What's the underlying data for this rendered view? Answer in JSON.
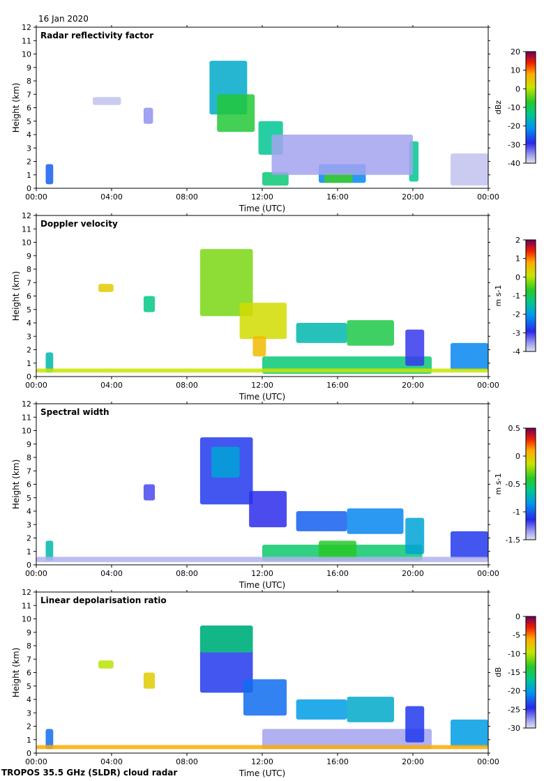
{
  "date_label": "16 Jan 2020",
  "footer": "TROPOS 35.5 GHz (SLDR) cloud radar",
  "chart_data": [
    {
      "type": "heatmap",
      "title": "Radar reflectivity factor",
      "xlabel": "Time (UTC)",
      "ylabel": "Height (km)",
      "xticks": [
        "00:00",
        "04:00",
        "08:00",
        "12:00",
        "16:00",
        "20:00",
        "00:00"
      ],
      "xlim": [
        0,
        24
      ],
      "ylim": [
        0,
        12
      ],
      "yticks": [
        "0",
        "1",
        "2",
        "3",
        "4",
        "5",
        "6",
        "7",
        "8",
        "9",
        "10",
        "11",
        "12"
      ],
      "colorbar": {
        "label": "dBz",
        "range": [
          -40,
          20
        ],
        "ticks": [
          "20",
          "10",
          "0",
          "-10",
          "-20",
          "-30",
          "-40"
        ]
      },
      "echoes": [
        {
          "t": [
            9.2,
            11.2
          ],
          "h": [
            5.5,
            9.5
          ],
          "v": -18
        },
        {
          "t": [
            9.6,
            11.6
          ],
          "h": [
            4.2,
            7.0
          ],
          "v": -8
        },
        {
          "t": [
            11.8,
            13.1
          ],
          "h": [
            2.5,
            5.0
          ],
          "v": -14
        },
        {
          "t": [
            12.0,
            13.4
          ],
          "h": [
            0.2,
            1.2
          ],
          "v": -12
        },
        {
          "t": [
            15.0,
            17.5
          ],
          "h": [
            0.4,
            1.8
          ],
          "v": -22
        },
        {
          "t": [
            15.3,
            16.8
          ],
          "h": [
            0.4,
            1.2
          ],
          "v": -6
        },
        {
          "t": [
            19.8,
            20.3
          ],
          "h": [
            0.5,
            3.5
          ],
          "v": -14
        },
        {
          "t": [
            0.5,
            0.9
          ],
          "h": [
            0.3,
            1.8
          ],
          "v": -25
        },
        {
          "t": [
            5.7,
            6.2
          ],
          "h": [
            4.8,
            6.0
          ],
          "v": -35
        },
        {
          "t": [
            3.0,
            4.5
          ],
          "h": [
            6.2,
            6.8
          ],
          "v": -38
        },
        {
          "t": [
            22.0,
            24.0
          ],
          "h": [
            0.2,
            2.6
          ],
          "v": -38
        },
        {
          "t": [
            12.5,
            20.0
          ],
          "h": [
            1.0,
            4.0
          ],
          "v": -36
        }
      ]
    },
    {
      "type": "heatmap",
      "title": "Doppler velocity",
      "xlabel": "Time (UTC)",
      "ylabel": "Height (km)",
      "xticks": [
        "00:00",
        "04:00",
        "08:00",
        "12:00",
        "16:00",
        "20:00",
        "00:00"
      ],
      "xlim": [
        0,
        24
      ],
      "ylim": [
        0,
        12
      ],
      "yticks": [
        "0",
        "1",
        "2",
        "3",
        "4",
        "5",
        "6",
        "7",
        "8",
        "9",
        "10",
        "11",
        "12"
      ],
      "colorbar": {
        "label": "m s-1",
        "range": [
          -4,
          2
        ],
        "ticks": [
          "2",
          "1",
          "0",
          "-1",
          "-2",
          "-3",
          "-4"
        ]
      },
      "echoes": [
        {
          "t": [
            8.7,
            11.5
          ],
          "h": [
            4.5,
            9.5
          ],
          "v": -0.3
        },
        {
          "t": [
            10.8,
            13.3
          ],
          "h": [
            2.8,
            5.5
          ],
          "v": 0.2
        },
        {
          "t": [
            11.5,
            12.2
          ],
          "h": [
            1.5,
            3.0
          ],
          "v": 0.6
        },
        {
          "t": [
            12.0,
            21.0
          ],
          "h": [
            0.2,
            1.5
          ],
          "v": -1.2
        },
        {
          "t": [
            13.8,
            16.5
          ],
          "h": [
            2.5,
            4.0
          ],
          "v": -1.6
        },
        {
          "t": [
            16.5,
            19.0
          ],
          "h": [
            2.3,
            4.2
          ],
          "v": -0.9
        },
        {
          "t": [
            19.6,
            20.6
          ],
          "h": [
            0.8,
            3.5
          ],
          "v": -3.0
        },
        {
          "t": [
            22.0,
            24.0
          ],
          "h": [
            0.5,
            2.5
          ],
          "v": -2.2
        },
        {
          "t": [
            0.5,
            0.9
          ],
          "h": [
            0.3,
            1.8
          ],
          "v": -1.6
        },
        {
          "t": [
            5.7,
            6.3
          ],
          "h": [
            4.8,
            6.0
          ],
          "v": -1.3
        },
        {
          "t": [
            3.3,
            4.1
          ],
          "h": [
            6.3,
            6.9
          ],
          "v": 0.4
        },
        {
          "t": [
            0.0,
            24.0
          ],
          "h": [
            0.3,
            0.6
          ],
          "v": 0.1
        }
      ]
    },
    {
      "type": "heatmap",
      "title": "Spectral width",
      "xlabel": "Time (UTC)",
      "ylabel": "Height (km)",
      "xticks": [
        "00:00",
        "04:00",
        "08:00",
        "12:00",
        "16:00",
        "20:00",
        "00:00"
      ],
      "xlim": [
        0,
        24
      ],
      "ylim": [
        0,
        12
      ],
      "yticks": [
        "0",
        "1",
        "2",
        "3",
        "4",
        "5",
        "6",
        "7",
        "8",
        "9",
        "10",
        "11",
        "12"
      ],
      "colorbar": {
        "label": "m s-1",
        "range": [
          -1.5,
          0.5
        ],
        "ticks": [
          "0.5",
          "0",
          "-0.5",
          "-1",
          "-1.5"
        ]
      },
      "echoes": [
        {
          "t": [
            8.7,
            11.5
          ],
          "h": [
            4.5,
            9.5
          ],
          "v": -1.1
        },
        {
          "t": [
            9.3,
            10.8
          ],
          "h": [
            6.5,
            8.8
          ],
          "v": -0.8
        },
        {
          "t": [
            11.3,
            13.3
          ],
          "h": [
            2.8,
            5.5
          ],
          "v": -1.15
        },
        {
          "t": [
            12.0,
            20.5
          ],
          "h": [
            0.3,
            1.5
          ],
          "v": -0.55
        },
        {
          "t": [
            15.0,
            17.0
          ],
          "h": [
            0.5,
            1.8
          ],
          "v": -0.4
        },
        {
          "t": [
            13.8,
            16.5
          ],
          "h": [
            2.5,
            4.0
          ],
          "v": -1.0
        },
        {
          "t": [
            16.5,
            19.5
          ],
          "h": [
            2.3,
            4.2
          ],
          "v": -0.9
        },
        {
          "t": [
            19.6,
            20.6
          ],
          "h": [
            0.8,
            3.5
          ],
          "v": -0.8
        },
        {
          "t": [
            22.0,
            24.0
          ],
          "h": [
            0.5,
            2.5
          ],
          "v": -1.1
        },
        {
          "t": [
            0.5,
            0.9
          ],
          "h": [
            0.3,
            1.8
          ],
          "v": -0.7
        },
        {
          "t": [
            5.7,
            6.3
          ],
          "h": [
            4.8,
            6.0
          ],
          "v": -1.2
        },
        {
          "t": [
            0.0,
            24.0
          ],
          "h": [
            0.2,
            0.6
          ],
          "v": -1.4
        }
      ]
    },
    {
      "type": "heatmap",
      "title": "Linear depolarisation ratio",
      "xlabel": "Time (UTC)",
      "ylabel": "Height (km)",
      "xticks": [
        "00:00",
        "04:00",
        "08:00",
        "12:00",
        "16:00",
        "20:00",
        "00:00"
      ],
      "xlim": [
        0,
        24
      ],
      "ylim": [
        0,
        12
      ],
      "yticks": [
        "0",
        "1",
        "2",
        "3",
        "4",
        "5",
        "6",
        "7",
        "8",
        "9",
        "10",
        "11",
        "12"
      ],
      "colorbar": {
        "label": "dB",
        "range": [
          -30,
          0
        ],
        "ticks": [
          "0",
          "-5",
          "-10",
          "-15",
          "-20",
          "-25",
          "-30"
        ]
      },
      "echoes": [
        {
          "t": [
            8.7,
            11.5
          ],
          "h": [
            4.5,
            9.5
          ],
          "v": -24
        },
        {
          "t": [
            8.7,
            11.5
          ],
          "h": [
            7.5,
            9.5
          ],
          "v": -16
        },
        {
          "t": [
            11.0,
            13.3
          ],
          "h": [
            2.8,
            5.5
          ],
          "v": -22
        },
        {
          "t": [
            12.0,
            21.0
          ],
          "h": [
            0.3,
            1.8
          ],
          "v": -28
        },
        {
          "t": [
            13.8,
            16.5
          ],
          "h": [
            2.5,
            4.0
          ],
          "v": -20
        },
        {
          "t": [
            16.5,
            19.0
          ],
          "h": [
            2.3,
            4.2
          ],
          "v": -19
        },
        {
          "t": [
            19.6,
            20.6
          ],
          "h": [
            0.8,
            3.5
          ],
          "v": -24
        },
        {
          "t": [
            22.0,
            24.0
          ],
          "h": [
            0.5,
            2.5
          ],
          "v": -20
        },
        {
          "t": [
            0.5,
            0.9
          ],
          "h": [
            0.3,
            1.8
          ],
          "v": -22
        },
        {
          "t": [
            5.7,
            6.3
          ],
          "h": [
            4.8,
            6.0
          ],
          "v": -8
        },
        {
          "t": [
            3.3,
            4.1
          ],
          "h": [
            6.3,
            6.9
          ],
          "v": -10
        },
        {
          "t": [
            0.0,
            24.0
          ],
          "h": [
            0.3,
            0.6
          ],
          "v": -6
        }
      ]
    }
  ]
}
